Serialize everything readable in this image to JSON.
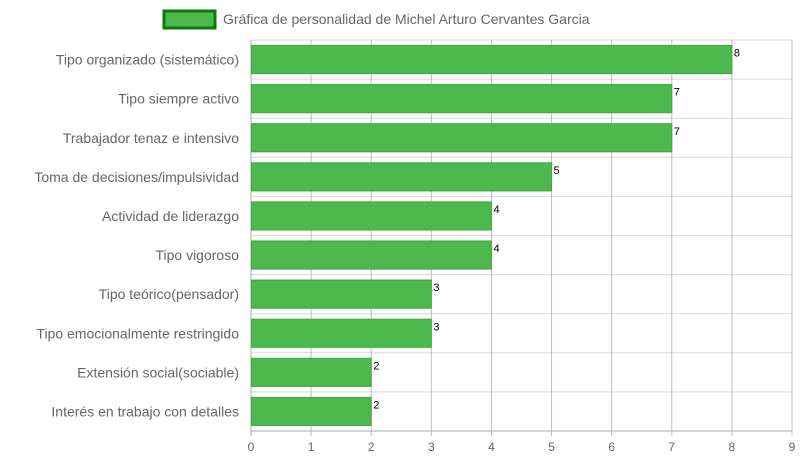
{
  "chart_data": {
    "type": "bar",
    "orientation": "horizontal",
    "title": "",
    "legend": [
      "Gráfica de personalidad de Michel Arturo Cervantes Garcia"
    ],
    "legend_position": "top-center",
    "categories": [
      "Tipo organizado (sistemático)",
      "Tipo siempre activo",
      "Trabajador tenaz e intensivo",
      "Toma de decisiones/impulsividad",
      "Actividad de liderazgo",
      "Tipo vigoroso",
      "Tipo teórico(pensador)",
      "Tipo emocionalmente restringido",
      "Extensión social(sociable)",
      "Interés en trabajo con detalles"
    ],
    "series": [
      {
        "name": "Gráfica de personalidad de Michel Arturo Cervantes Garcia",
        "values": [
          8,
          7,
          7,
          5,
          4,
          4,
          3,
          3,
          2,
          2
        ]
      }
    ],
    "x_ticks": [
      "0",
      "1",
      "2",
      "3",
      "4",
      "5",
      "6",
      "7",
      "8",
      "9"
    ],
    "xlim": [
      0,
      9
    ],
    "grid": true,
    "data_labels": true,
    "colors": {
      "bar_fill": "#4db84d",
      "bar_border": "#3fa83f",
      "legend_border": "#0a7a0a",
      "grid": "#d9d9d9",
      "text": "#666666"
    }
  }
}
